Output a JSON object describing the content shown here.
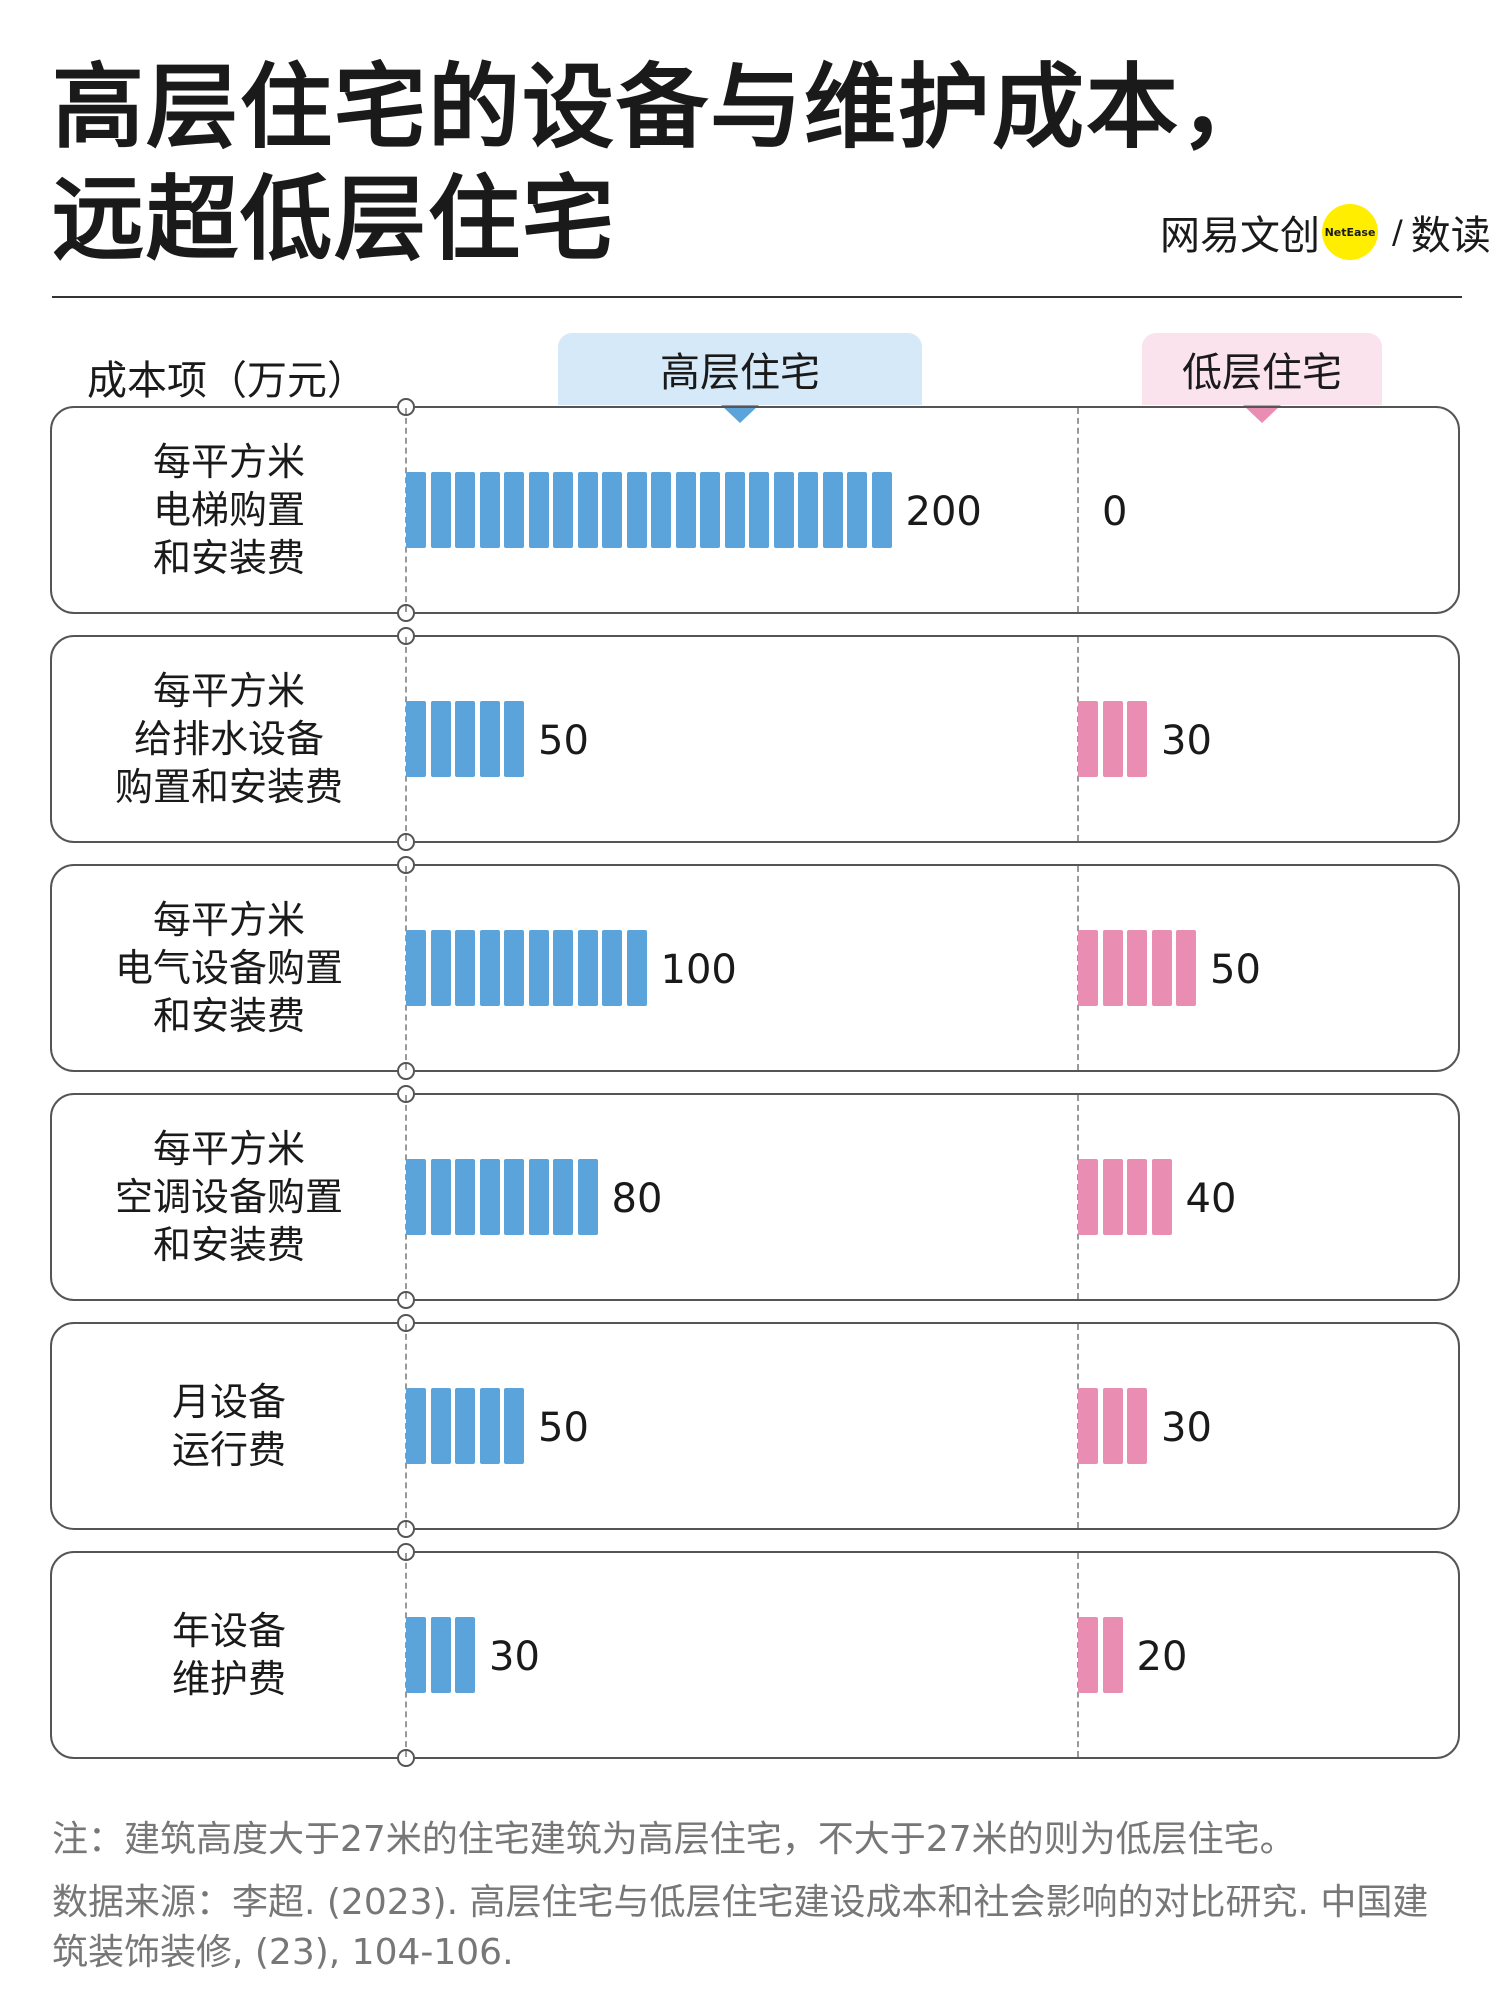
{
  "title": {
    "line1": "高层住宅的设备与维护成本，",
    "line2": "远超低层住宅"
  },
  "brand": {
    "name": "网易文创",
    "logo_text": "NetEase",
    "slash": "/",
    "section": "数读"
  },
  "column_label": "成本项（万元）",
  "headers": {
    "high": "高层住宅",
    "low": "低层住宅"
  },
  "colors": {
    "high": "#5aa3db",
    "low": "#ea8db3",
    "high_tab": "#d6e9f8",
    "low_tab": "#fbe3ee"
  },
  "chart_data": {
    "type": "bar",
    "ylabel": "成本项（万元）",
    "categories": [
      "每平方米\n电梯购置\n和安装费",
      "每平方米\n给排水设备\n购置和安装费",
      "每平方米\n电气设备购置\n和安装费",
      "每平方米\n空调设备购置\n和安装费",
      "月设备\n运行费",
      "年设备\n维护费"
    ],
    "series": [
      {
        "name": "高层住宅",
        "values": [
          200,
          50,
          100,
          80,
          50,
          30
        ]
      },
      {
        "name": "低层住宅",
        "values": [
          0,
          30,
          50,
          40,
          30,
          20
        ]
      }
    ]
  },
  "value_labels": {
    "high": [
      "200",
      "50",
      "100",
      "80",
      "50",
      "30"
    ],
    "low": [
      "0",
      "30",
      "50",
      "40",
      "30",
      "20"
    ]
  },
  "note": "注：建筑高度大于27米的住宅建筑为高层住宅，不大于27米的则为低层住宅。",
  "source": "数据来源：李超. (2023). 高层住宅与低层住宅建设成本和社会影响的对比研究. 中国建筑装饰装修, (23), 104-106."
}
